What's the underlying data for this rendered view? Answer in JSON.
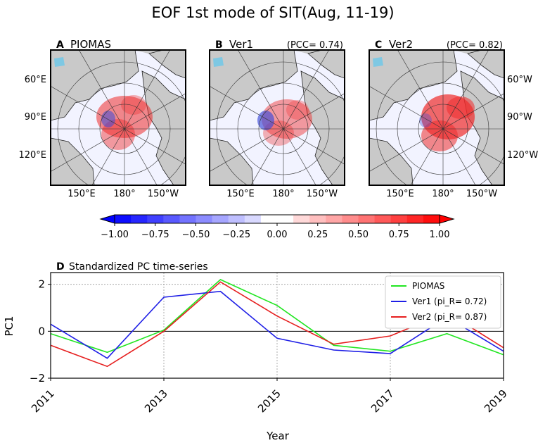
{
  "figure_title": "EOF 1st mode of SIT(Aug, 11-19)",
  "colors": {
    "land": "#c9c9c9",
    "ocean": "#f2f3ff",
    "anomaly_pos": "#ef2b2b",
    "anomaly_neg": "#3a4ad8",
    "lake": "#7ec8e3"
  },
  "maps": [
    {
      "panel": "A",
      "name": "PIOMAS",
      "pcc": ""
    },
    {
      "panel": "B",
      "name": "Ver1",
      "pcc": "(PCC= 0.74)"
    },
    {
      "panel": "C",
      "name": "Ver2",
      "pcc": "(PCC= 0.82)"
    }
  ],
  "map_labels": {
    "left_lat": [
      "60°E",
      "90°E",
      "120°E"
    ],
    "right_lat": [
      "60°W",
      "90°W",
      "120°W"
    ],
    "bottom_lon": [
      "150°E",
      "180°",
      "150°W"
    ]
  },
  "colorbar": {
    "ticks": [
      "−1.00",
      "−0.75",
      "−0.50",
      "−0.25",
      "0.00",
      "0.25",
      "0.50",
      "0.75",
      "1.00"
    ],
    "min": -1.0,
    "max": 1.0,
    "levels": 20
  },
  "chart_data": {
    "type": "line",
    "title": "Standardized PC time-series",
    "panel": "D",
    "xlabel": "Year",
    "ylabel": "PC1",
    "xlim": [
      2011,
      2019
    ],
    "ylim": [
      -2,
      2.5
    ],
    "x": [
      2011,
      2012,
      2013,
      2014,
      2015,
      2016,
      2017,
      2018,
      2019
    ],
    "xticks": [
      "2011",
      "2013",
      "2015",
      "2017",
      "2019"
    ],
    "yticks": [
      "−2",
      "0",
      "2"
    ],
    "legend_position": "top-right",
    "series": [
      {
        "name": "PIOMAS",
        "color": "#22e622",
        "values": [
          -0.1,
          -0.9,
          0.05,
          2.2,
          1.1,
          -0.6,
          -0.85,
          -0.1,
          -1.0
        ]
      },
      {
        "name": "Ver1 (pi_R= 0.72)",
        "color": "#1f1fe6",
        "values": [
          0.3,
          -1.15,
          1.45,
          1.7,
          -0.3,
          -0.8,
          -0.95,
          0.6,
          -0.85
        ]
      },
      {
        "name": "Ver2 (pi_R= 0.87)",
        "color": "#e61f1f",
        "values": [
          -0.6,
          -1.5,
          0.0,
          2.1,
          0.65,
          -0.55,
          -0.2,
          0.8,
          -0.7
        ]
      }
    ]
  }
}
